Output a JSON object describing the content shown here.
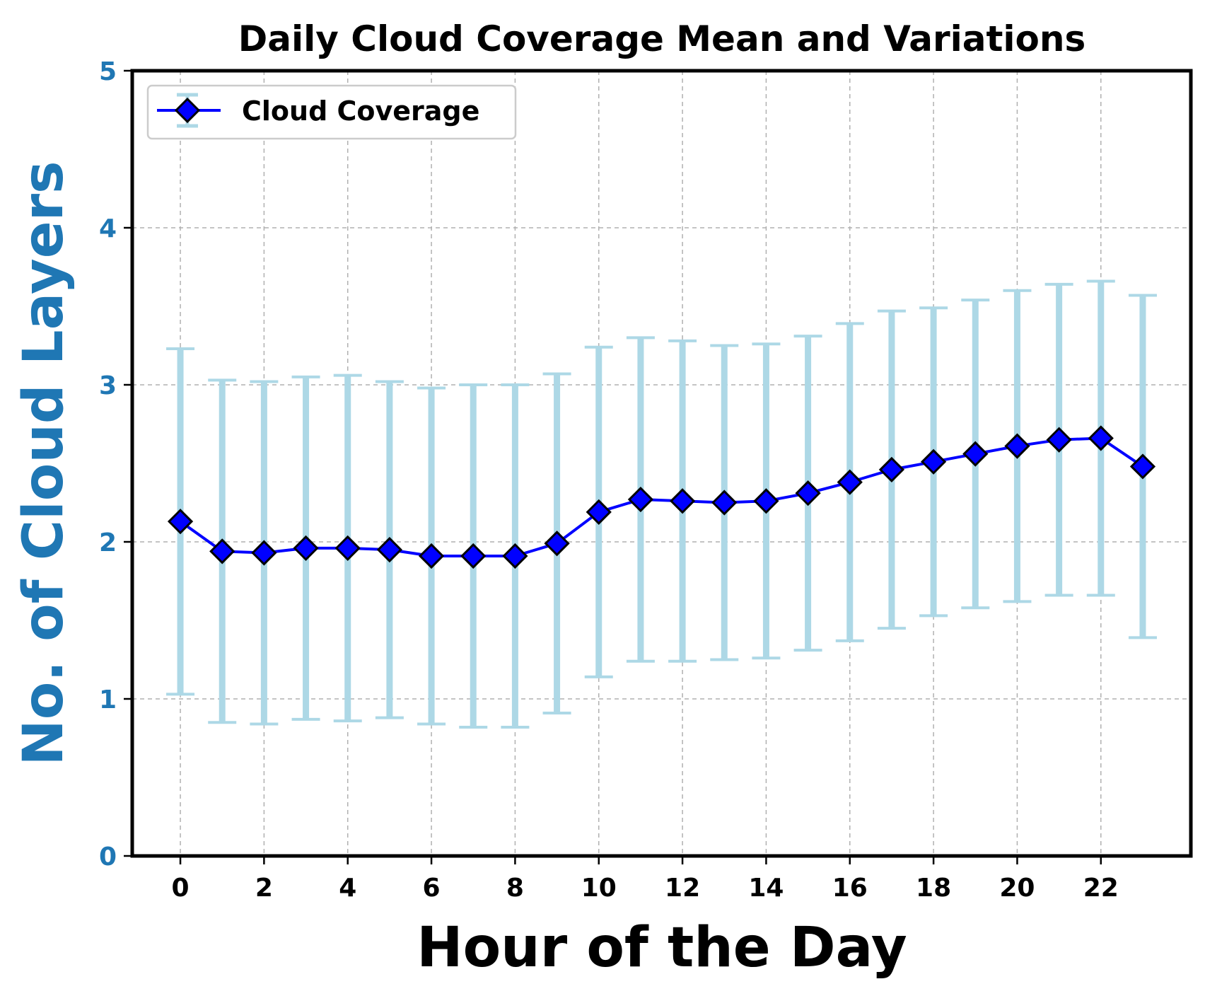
{
  "chart_data": {
    "type": "line",
    "title": "Daily Cloud Coverage Mean and Variations",
    "xlabel": "Hour of the Day",
    "ylabel": "No. of Cloud Layers",
    "xlim": [
      -1.15,
      24.15
    ],
    "ylim": [
      0,
      5
    ],
    "xticks": [
      "0",
      "2",
      "4",
      "6",
      "8",
      "10",
      "12",
      "14",
      "16",
      "18",
      "20",
      "22"
    ],
    "yticks": [
      "0",
      "1",
      "2",
      "3",
      "4",
      "5"
    ],
    "grid": true,
    "legend_position": "top-left",
    "colors": {
      "line": "#0000ff",
      "marker_face": "#0000ff",
      "marker_edge": "#000000",
      "errorbar": "#add8e6",
      "ylabel": "#1f77b4",
      "ytick": "#1f77b4",
      "grid": "#b0b0b0"
    },
    "marker": "diamond",
    "series": [
      {
        "name": "Cloud Coverage",
        "x": [
          0,
          1,
          2,
          3,
          4,
          5,
          6,
          7,
          8,
          9,
          10,
          11,
          12,
          13,
          14,
          15,
          16,
          17,
          18,
          19,
          20,
          21,
          22,
          23
        ],
        "y": [
          2.13,
          1.94,
          1.93,
          1.96,
          1.96,
          1.95,
          1.91,
          1.91,
          1.91,
          1.99,
          2.19,
          2.27,
          2.26,
          2.25,
          2.26,
          2.31,
          2.38,
          2.46,
          2.51,
          2.56,
          2.61,
          2.65,
          2.66,
          2.48
        ],
        "err": [
          1.1,
          1.09,
          1.09,
          1.09,
          1.1,
          1.07,
          1.07,
          1.09,
          1.09,
          1.08,
          1.05,
          1.03,
          1.02,
          1.0,
          1.0,
          1.0,
          1.01,
          1.01,
          0.98,
          0.98,
          0.99,
          0.99,
          1.0,
          1.09
        ]
      }
    ]
  }
}
